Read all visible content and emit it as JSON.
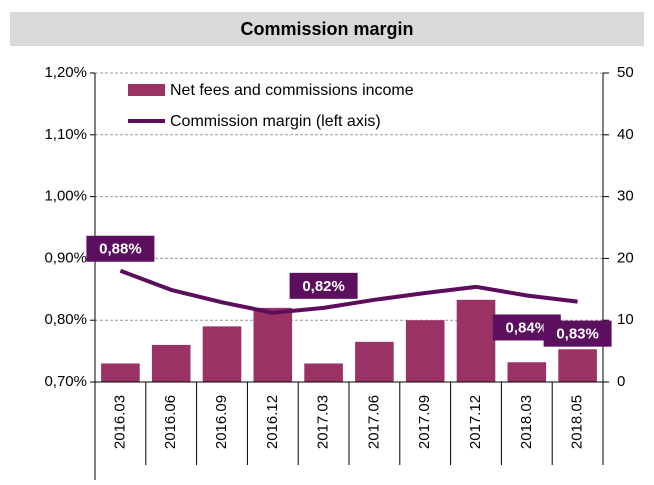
{
  "chart_data": {
    "type": "bar",
    "title": "Commission margin",
    "categories": [
      "2016.03",
      "2016.06",
      "2016.09",
      "2016.12",
      "2017.03",
      "2017.06",
      "2017.09",
      "2017.12",
      "2018.03",
      "2018.05"
    ],
    "series": [
      {
        "name": "Net fees and commissions income",
        "type": "bar",
        "axis": "y2",
        "color": "#9b3265",
        "values": [
          3,
          6,
          9,
          12,
          3,
          6.5,
          10,
          13.3,
          3.2,
          5.3
        ]
      },
      {
        "name": "Commission margin (left axis)",
        "type": "line",
        "axis": "y",
        "color": "#5a0e5c",
        "values": [
          0.88,
          0.849,
          0.829,
          0.812,
          0.82,
          0.833,
          0.844,
          0.854,
          0.84,
          0.83
        ],
        "value_labels": [
          "0,88%",
          null,
          null,
          null,
          "0,82%",
          null,
          null,
          null,
          "0,84%",
          "0,83%"
        ]
      }
    ],
    "ylim": [
      0.7,
      1.2
    ],
    "yticks": [
      {
        "value": 0.7,
        "label": "0,70%"
      },
      {
        "value": 0.8,
        "label": "0,80%"
      },
      {
        "value": 0.9,
        "label": "0,90%"
      },
      {
        "value": 1.0,
        "label": "1,00%"
      },
      {
        "value": 1.1,
        "label": "1,10%"
      },
      {
        "value": 1.2,
        "label": "1,20%"
      }
    ],
    "y2lim": [
      0,
      50
    ],
    "y2ticks": [
      0,
      10,
      20,
      30,
      40,
      50
    ],
    "grid": true,
    "legend": "top-left"
  }
}
